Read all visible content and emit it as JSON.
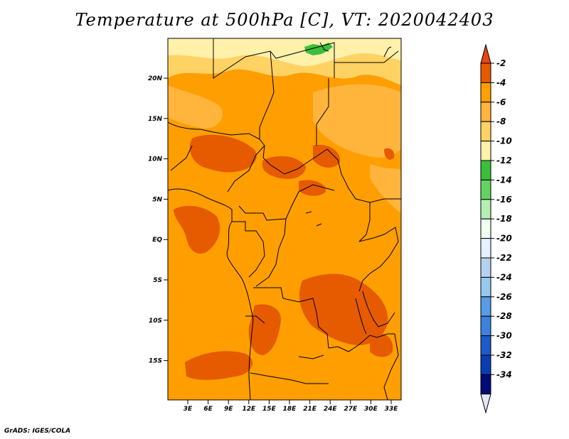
{
  "title": "Temperature at 500hPa [C], VT: 2020042403",
  "credit": "GrADS: IGES/COLA",
  "map": {
    "lat_ticks": [
      "20N",
      "15N",
      "10N",
      "5N",
      "EQ",
      "5S",
      "10S",
      "15S"
    ],
    "lon_ticks": [
      "3E",
      "6E",
      "9E",
      "12E",
      "15E",
      "18E",
      "21E",
      "24E",
      "27E",
      "30E",
      "33E"
    ]
  },
  "colorbar": {
    "labels": [
      "-2",
      "-4",
      "-6",
      "-8",
      "-10",
      "-12",
      "-14",
      "-16",
      "-18",
      "-20",
      "-22",
      "-24",
      "-26",
      "-28",
      "-30",
      "-32",
      "-34"
    ],
    "colors": [
      "#e65a00",
      "#ff9e00",
      "#ffb43c",
      "#ffd264",
      "#fff0aa",
      "#3cbe3c",
      "#64d264",
      "#b4f0b4",
      "#f0fff0",
      "#e6f0ff",
      "#b4d2f0",
      "#96c8f0",
      "#5a9be6",
      "#3c82dc",
      "#1e5ac8",
      "#0a3cb4",
      "#000a78"
    ],
    "top_color": "#e64614",
    "bottom_color": "#e6e6fa"
  }
}
